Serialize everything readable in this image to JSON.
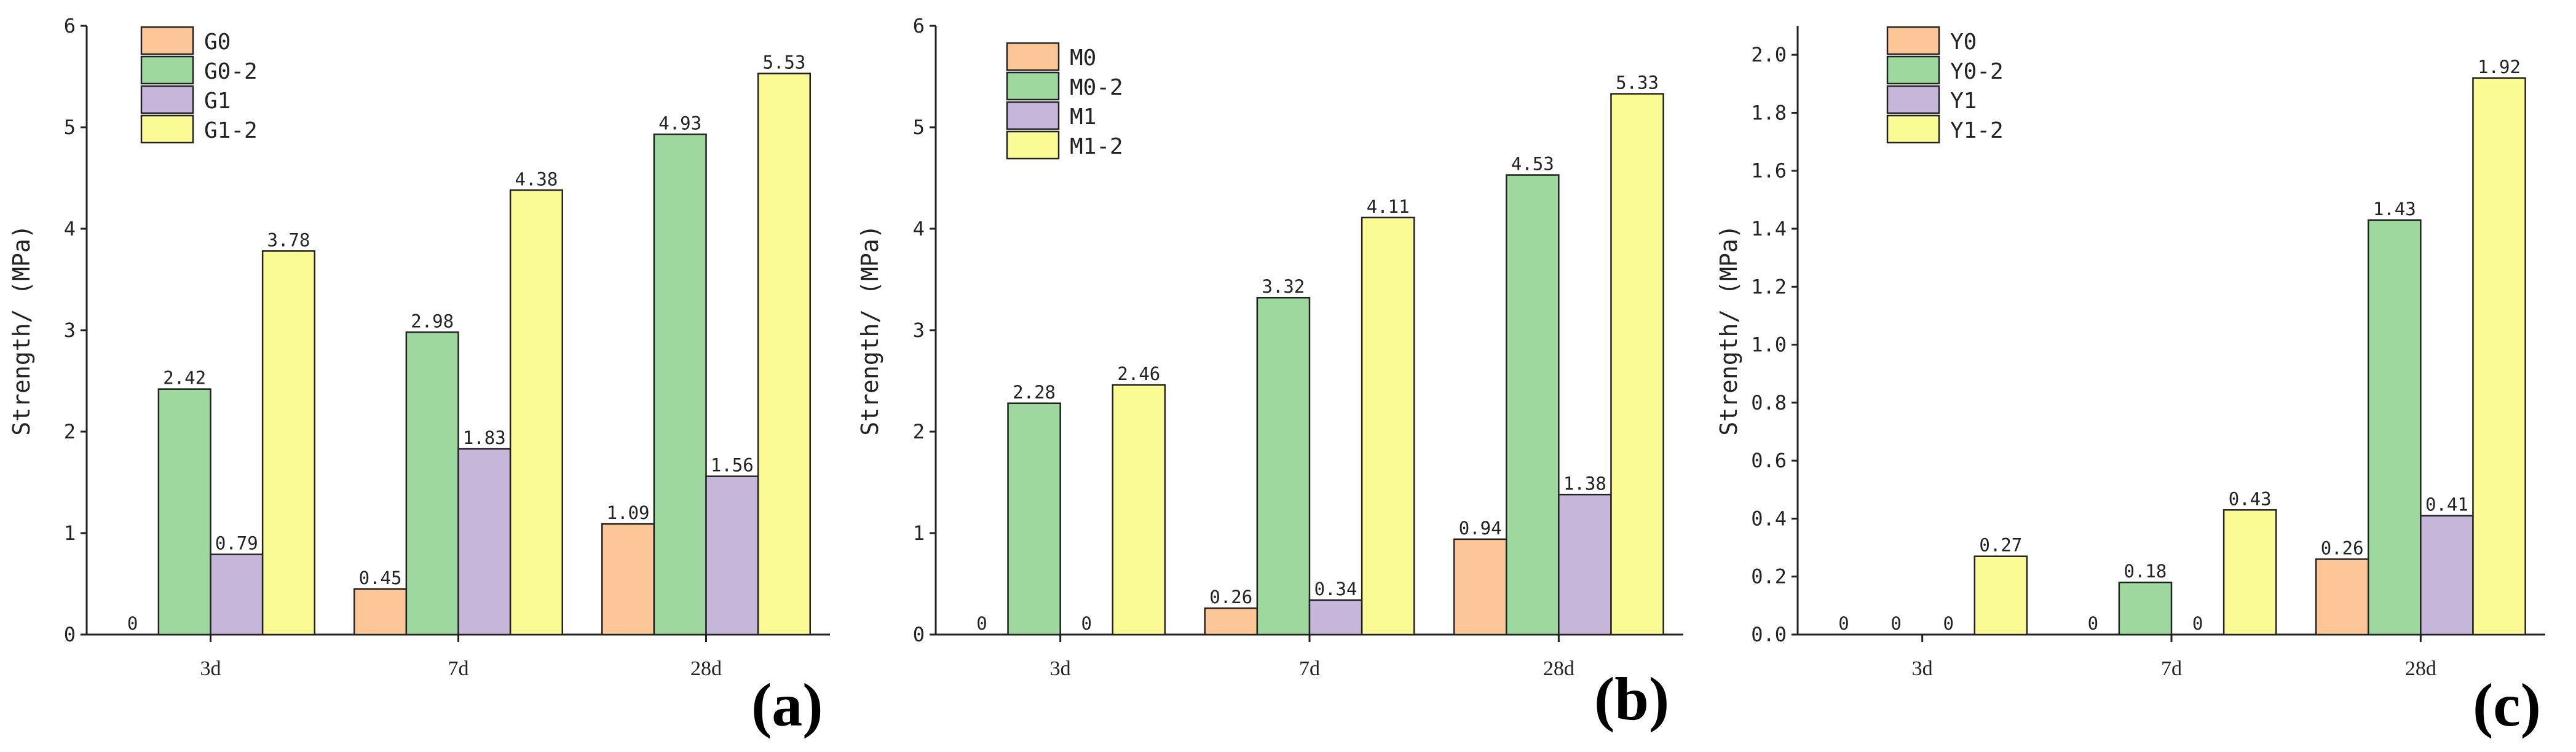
{
  "chart_data": [
    {
      "type": "bar",
      "panel_label": "(a)",
      "ylabel": "Strength/ (MPa)",
      "ylim": [
        0,
        6
      ],
      "yticks": [
        0,
        1,
        2,
        3,
        4,
        5,
        6
      ],
      "legend_position": "top-left",
      "categories": [
        "3d",
        "7d",
        "28d"
      ],
      "series": [
        {
          "name": "G0",
          "color": "#fdc696",
          "values": [
            0,
            0.45,
            1.09
          ],
          "labels": [
            "0",
            "0.45",
            "1.09"
          ]
        },
        {
          "name": "G0-2",
          "color": "#9ed89e",
          "values": [
            2.42,
            2.98,
            4.93
          ],
          "labels": [
            "2.42",
            "2.98",
            "4.93"
          ]
        },
        {
          "name": "G1",
          "color": "#c6b6da",
          "values": [
            0.79,
            1.83,
            1.56
          ],
          "labels": [
            "0.79",
            "1.83",
            "1.56"
          ]
        },
        {
          "name": "G1-2",
          "color": "#fbfb96",
          "values": [
            3.78,
            4.38,
            5.53
          ],
          "labels": [
            "3.78",
            "4.38",
            "5.53"
          ]
        }
      ]
    },
    {
      "type": "bar",
      "panel_label": "(b)",
      "ylabel": "Strength/ (MPa)",
      "ylim": [
        0,
        6
      ],
      "yticks": [
        0,
        1,
        2,
        3,
        4,
        5,
        6
      ],
      "legend_position": "top-left",
      "categories": [
        "3d",
        "7d",
        "28d"
      ],
      "series": [
        {
          "name": "M0",
          "color": "#fdc696",
          "values": [
            0,
            0.26,
            0.94
          ],
          "labels": [
            "0",
            "0.26",
            "0.94"
          ]
        },
        {
          "name": "M0-2",
          "color": "#9ed89e",
          "values": [
            2.28,
            3.32,
            4.53
          ],
          "labels": [
            "2.28",
            "3.32",
            "4.53"
          ]
        },
        {
          "name": "M1",
          "color": "#c6b6da",
          "values": [
            0,
            0.34,
            1.38
          ],
          "labels": [
            "0",
            "0.34",
            "1.38"
          ]
        },
        {
          "name": "M1-2",
          "color": "#fbfb96",
          "values": [
            2.46,
            4.11,
            5.33
          ],
          "labels": [
            "2.46",
            "4.11",
            "5.33"
          ]
        }
      ]
    },
    {
      "type": "bar",
      "panel_label": "(c)",
      "ylabel": "Strength/ (MPa)",
      "ylim": [
        0,
        2.1
      ],
      "yticks": [
        0.0,
        0.2,
        0.4,
        0.6,
        0.8,
        1.0,
        1.2,
        1.4,
        1.6,
        1.8,
        2.0
      ],
      "ytick_labels": [
        "0.0",
        "0.2",
        "0.4",
        "0.6",
        "0.8",
        "1.0",
        "1.2",
        "1.4",
        "1.6",
        "1.8",
        "2.0"
      ],
      "legend_position": "top-left",
      "categories": [
        "3d",
        "7d",
        "28d"
      ],
      "series": [
        {
          "name": "Y0",
          "color": "#fdc696",
          "values": [
            0,
            0,
            0.26
          ],
          "labels": [
            "0",
            "0",
            "0.26"
          ]
        },
        {
          "name": "Y0-2",
          "color": "#9ed89e",
          "values": [
            0,
            0.18,
            1.43
          ],
          "labels": [
            "0",
            "0.18",
            "1.43"
          ]
        },
        {
          "name": "Y1",
          "color": "#c6b6da",
          "values": [
            0,
            0,
            0.41
          ],
          "labels": [
            "0",
            "0",
            "0.41"
          ]
        },
        {
          "name": "Y1-2",
          "color": "#fbfb96",
          "values": [
            0.27,
            0.43,
            1.92
          ],
          "labels": [
            "0.27",
            "0.43",
            "1.92"
          ]
        }
      ]
    }
  ]
}
